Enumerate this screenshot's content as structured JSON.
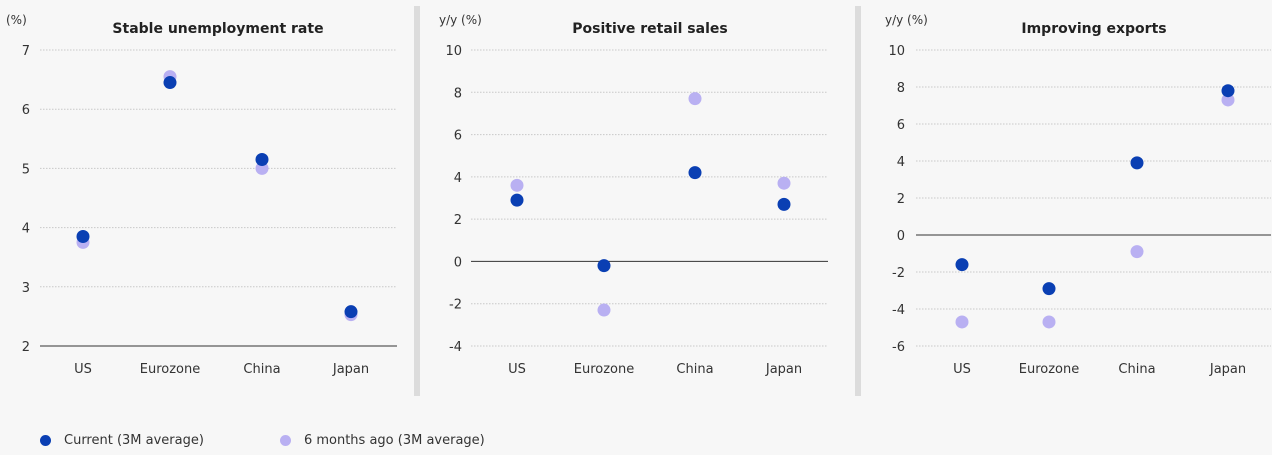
{
  "colors": {
    "current": "#0a3fb3",
    "previous": "#b9b0f2",
    "grid": "#c8c8c8",
    "zero_line": "#333333",
    "separator": "#dcdcdc"
  },
  "legend": {
    "current": "Current (3M average)",
    "previous": "6 months ago (3M average)"
  },
  "chart_data": [
    {
      "type": "scatter",
      "title": "Stable unemployment rate",
      "ylabel": "(%)",
      "categories": [
        "US",
        "Eurozone",
        "China",
        "Japan"
      ],
      "ylim": [
        2,
        7
      ],
      "yticks": [
        "2",
        "3",
        "4",
        "5",
        "6",
        "7"
      ],
      "grid": true,
      "series": [
        {
          "name": "Current (3M average)",
          "values": [
            3.85,
            6.45,
            5.15,
            2.58
          ]
        },
        {
          "name": "6 months ago (3M average)",
          "values": [
            3.75,
            6.55,
            5.0,
            2.53
          ]
        }
      ]
    },
    {
      "type": "scatter",
      "title": "Positive retail sales",
      "ylabel": "y/y (%)",
      "categories": [
        "US",
        "Eurozone",
        "China",
        "Japan"
      ],
      "ylim": [
        -4,
        10
      ],
      "yticks": [
        "-4",
        "-2",
        "0",
        "2",
        "4",
        "6",
        "8",
        "10"
      ],
      "grid": true,
      "series": [
        {
          "name": "Current (3M average)",
          "values": [
            2.9,
            -0.2,
            4.2,
            2.7
          ]
        },
        {
          "name": "6 months ago (3M average)",
          "values": [
            3.6,
            -2.3,
            7.7,
            3.7
          ]
        }
      ]
    },
    {
      "type": "scatter",
      "title": "Improving exports",
      "ylabel": "y/y (%)",
      "categories": [
        "US",
        "Eurozone",
        "China",
        "Japan"
      ],
      "ylim": [
        -6,
        10
      ],
      "yticks": [
        "-6",
        "-4",
        "-2",
        "0",
        "2",
        "4",
        "6",
        "8",
        "10"
      ],
      "grid": true,
      "series": [
        {
          "name": "Current (3M average)",
          "values": [
            -1.6,
            -2.9,
            3.9,
            7.8
          ]
        },
        {
          "name": "6 months ago (3M average)",
          "values": [
            -4.7,
            -4.7,
            -0.9,
            7.3
          ]
        }
      ]
    }
  ]
}
